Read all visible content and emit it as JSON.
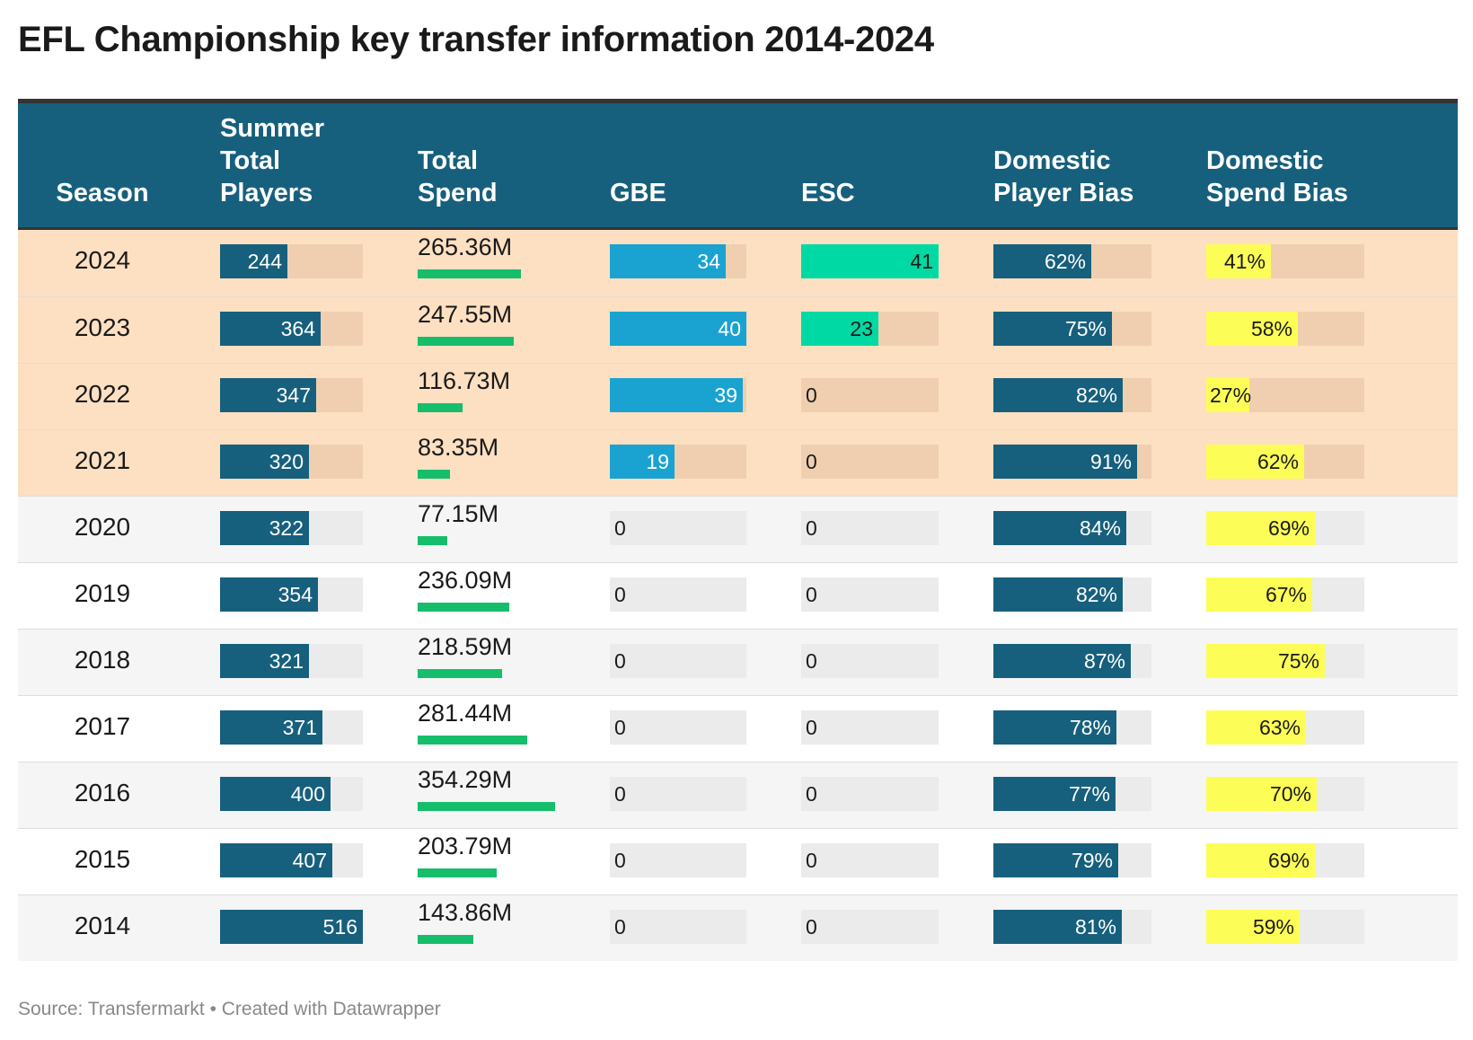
{
  "title": "EFL Championship key transfer information 2014-2024",
  "source": "Source: Transfermarkt • Created with Datawrapper",
  "colors": {
    "header_bg": "#17607d",
    "highlight_row": "#fde0c2",
    "row_alt": "#f5f5f5",
    "players_bar": "#17607d",
    "spend_bar": "#16bd6a",
    "gbe_bar": "#1aa3d1",
    "esc_bar": "#00d9a3",
    "player_bias_bar": "#17607d",
    "spend_bias_bar": "#fdfd57"
  },
  "columns": {
    "season": "Season",
    "players": "Summer Total Players",
    "spend": "Total Spend",
    "gbe": "GBE",
    "esc": "ESC",
    "player_bias": "Domestic Player Bias",
    "spend_bias": "Domestic Spend Bias"
  },
  "chart_data": {
    "type": "table",
    "title": "EFL Championship key transfer information 2014-2024",
    "columns": [
      "Season",
      "Summer Total Players",
      "Total Spend",
      "GBE",
      "ESC",
      "Domestic Player Bias",
      "Domestic Spend Bias"
    ],
    "scales": {
      "players_max": 516,
      "spend_max": 354.29,
      "gbe_max": 40,
      "esc_max": 41,
      "bias_max": 100
    },
    "rows": [
      {
        "season": "2024",
        "players": 244,
        "spend": 265.36,
        "spend_label": "265.36M",
        "gbe": 34,
        "esc": 41,
        "player_bias": 62,
        "spend_bias": 41,
        "highlight": true
      },
      {
        "season": "2023",
        "players": 364,
        "spend": 247.55,
        "spend_label": "247.55M",
        "gbe": 40,
        "esc": 23,
        "player_bias": 75,
        "spend_bias": 58,
        "highlight": true
      },
      {
        "season": "2022",
        "players": 347,
        "spend": 116.73,
        "spend_label": "116.73M",
        "gbe": 39,
        "esc": 0,
        "player_bias": 82,
        "spend_bias": 27,
        "highlight": true
      },
      {
        "season": "2021",
        "players": 320,
        "spend": 83.35,
        "spend_label": "83.35M",
        "gbe": 19,
        "esc": 0,
        "player_bias": 91,
        "spend_bias": 62,
        "highlight": true
      },
      {
        "season": "2020",
        "players": 322,
        "spend": 77.15,
        "spend_label": "77.15M",
        "gbe": 0,
        "esc": 0,
        "player_bias": 84,
        "spend_bias": 69,
        "highlight": false
      },
      {
        "season": "2019",
        "players": 354,
        "spend": 236.09,
        "spend_label": "236.09M",
        "gbe": 0,
        "esc": 0,
        "player_bias": 82,
        "spend_bias": 67,
        "highlight": false
      },
      {
        "season": "2018",
        "players": 321,
        "spend": 218.59,
        "spend_label": "218.59M",
        "gbe": 0,
        "esc": 0,
        "player_bias": 87,
        "spend_bias": 75,
        "highlight": false
      },
      {
        "season": "2017",
        "players": 371,
        "spend": 281.44,
        "spend_label": "281.44M",
        "gbe": 0,
        "esc": 0,
        "player_bias": 78,
        "spend_bias": 63,
        "highlight": false
      },
      {
        "season": "2016",
        "players": 400,
        "spend": 354.29,
        "spend_label": "354.29M",
        "gbe": 0,
        "esc": 0,
        "player_bias": 77,
        "spend_bias": 70,
        "highlight": false
      },
      {
        "season": "2015",
        "players": 407,
        "spend": 203.79,
        "spend_label": "203.79M",
        "gbe": 0,
        "esc": 0,
        "player_bias": 79,
        "spend_bias": 69,
        "highlight": false
      },
      {
        "season": "2014",
        "players": 516,
        "spend": 143.86,
        "spend_label": "143.86M",
        "gbe": 0,
        "esc": 0,
        "player_bias": 81,
        "spend_bias": 59,
        "highlight": false
      }
    ]
  }
}
